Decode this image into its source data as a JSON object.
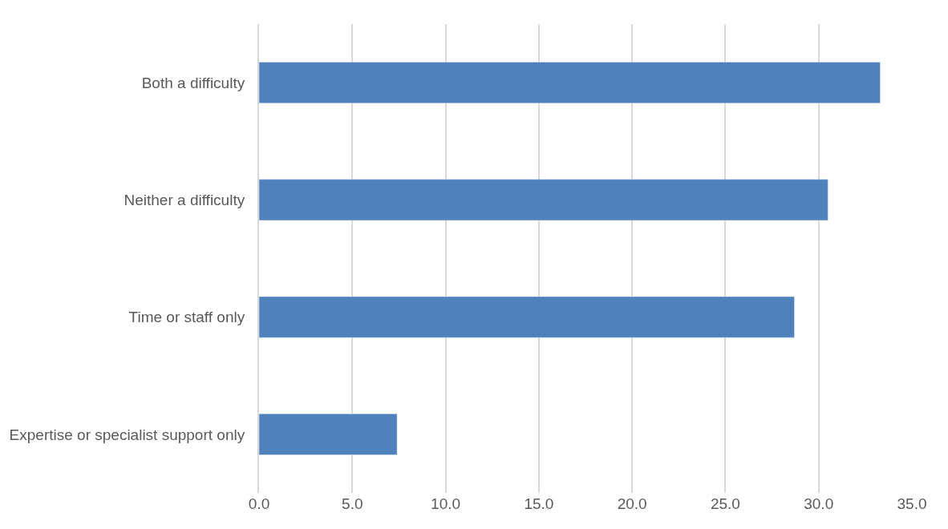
{
  "chart_data": {
    "type": "bar",
    "orientation": "horizontal",
    "categories": [
      "Both a difficulty",
      "Neither a difficulty",
      "Time or staff only",
      "Expertise or specialist support only"
    ],
    "values": [
      33.3,
      30.5,
      28.7,
      7.4
    ],
    "color": "#4f81bd",
    "xlim": [
      0,
      35
    ],
    "xticks": [
      {
        "value": 0,
        "label": "0.0"
      },
      {
        "value": 5,
        "label": "5.0"
      },
      {
        "value": 10,
        "label": "10.0"
      },
      {
        "value": 15,
        "label": "15.0"
      },
      {
        "value": 20,
        "label": "20.0"
      },
      {
        "value": 25,
        "label": "25.0"
      },
      {
        "value": 30,
        "label": "30.0"
      },
      {
        "value": 35,
        "label": "35.0"
      }
    ],
    "grid": "x"
  }
}
